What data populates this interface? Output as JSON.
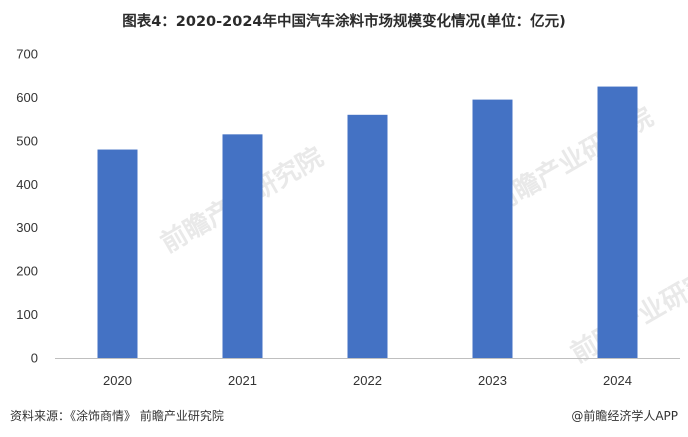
{
  "chart_data": {
    "type": "bar",
    "title": "图表4：2020-2024年中国汽车涂料市场规模变化情况(单位：亿元)",
    "categories": [
      "2020",
      "2021",
      "2022",
      "2023",
      "2024"
    ],
    "values": [
      480,
      515,
      560,
      595,
      625
    ],
    "ylim": [
      0,
      700
    ],
    "yticks": [
      "0",
      "100",
      "200",
      "300",
      "400",
      "500",
      "600",
      "700"
    ],
    "grid": false,
    "legend": "none",
    "bar_color": "#4472C4"
  },
  "footer": {
    "source": "资料来源：《涂饰商情》 前瞻产业研究院",
    "credit": "@前瞻经济学人APP"
  },
  "watermark": {
    "text": "前瞻产业研究院"
  }
}
